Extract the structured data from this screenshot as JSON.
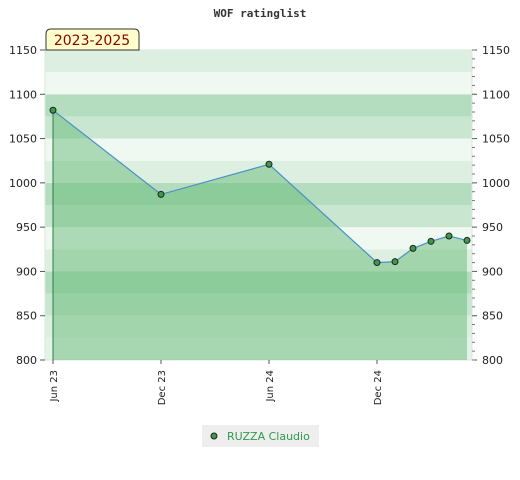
{
  "chart_data": {
    "type": "line",
    "title": "WOF ratinglist",
    "badge": "2023-2025",
    "ylim": [
      800,
      1150
    ],
    "y_ticks": [
      800,
      850,
      900,
      950,
      1000,
      1050,
      1100,
      1150
    ],
    "x_ticks": [
      "Jun 23",
      "Dec 23",
      "Jun 24",
      "Dec 24"
    ],
    "x_range": [
      "2023-06",
      "2025-06"
    ],
    "grid": true,
    "legend_position": "bottom-center",
    "series": [
      {
        "name": "RUZZA Claudio",
        "color": "#4a90c8",
        "fill": "#5cb56c",
        "points": [
          {
            "x": "2023-06",
            "y": 1082
          },
          {
            "x": "2023-12",
            "y": 987
          },
          {
            "x": "2024-06",
            "y": 1021
          },
          {
            "x": "2024-12",
            "y": 910
          },
          {
            "x": "2025-01",
            "y": 911
          },
          {
            "x": "2025-02",
            "y": 926
          },
          {
            "x": "2025-03",
            "y": 934
          },
          {
            "x": "2025-04",
            "y": 940
          },
          {
            "x": "2025-05",
            "y": 935
          }
        ]
      }
    ]
  }
}
